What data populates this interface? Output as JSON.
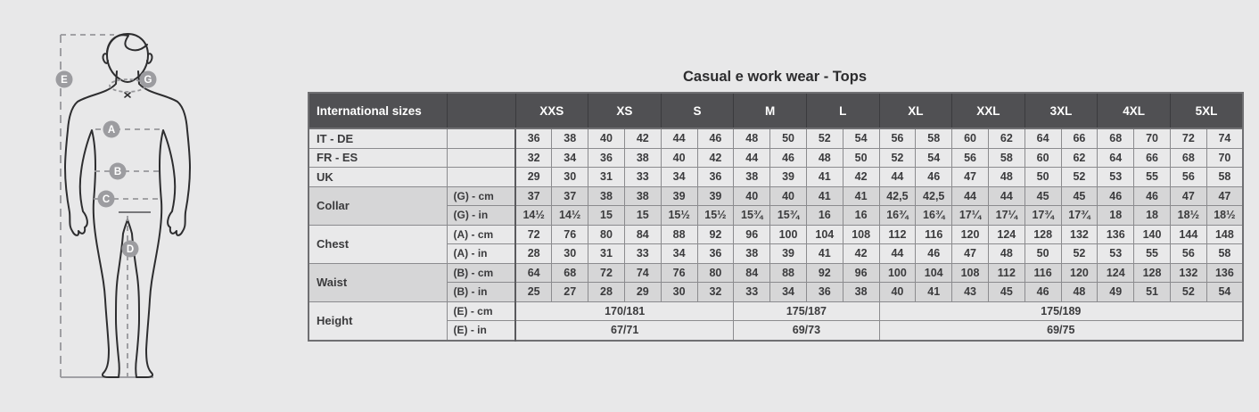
{
  "title": "Casual e work wear - Tops",
  "colors": {
    "page_background": "#e8e8e9",
    "header_background": "#505053",
    "header_text": "#ffffff",
    "row_light": "#e9e9ea",
    "row_dark": "#d6d6d7",
    "badge": "#9c9ca0",
    "body_outline": "#2d2d2f",
    "measure_line": "#97979b"
  },
  "figure": {
    "markers": {
      "height": "E",
      "collar": "G",
      "chest": "A",
      "waist": "B",
      "hip": "C",
      "inseam": "D"
    }
  },
  "table": {
    "corner_label": "International sizes",
    "size_groups": [
      "XXS",
      "XS",
      "S",
      "M",
      "L",
      "XL",
      "XXL",
      "3XL",
      "4XL",
      "5XL"
    ],
    "rows": [
      {
        "label": "IT - DE",
        "rowspan": 1,
        "sub": "",
        "shade": "light",
        "cells": [
          "36",
          "38",
          "40",
          "42",
          "44",
          "46",
          "48",
          "50",
          "52",
          "54",
          "56",
          "58",
          "60",
          "62",
          "64",
          "66",
          "68",
          "70",
          "72",
          "74"
        ]
      },
      {
        "label": "FR - ES",
        "rowspan": 1,
        "sub": "",
        "shade": "light",
        "cells": [
          "32",
          "34",
          "36",
          "38",
          "40",
          "42",
          "44",
          "46",
          "48",
          "50",
          "52",
          "54",
          "56",
          "58",
          "60",
          "62",
          "64",
          "66",
          "68",
          "70"
        ]
      },
      {
        "label": "UK",
        "rowspan": 1,
        "sub": "",
        "shade": "light",
        "cells": [
          "29",
          "30",
          "31",
          "33",
          "34",
          "36",
          "38",
          "39",
          "41",
          "42",
          "44",
          "46",
          "47",
          "48",
          "50",
          "52",
          "53",
          "55",
          "56",
          "58"
        ]
      },
      {
        "label": "Collar",
        "rowspan": 2,
        "sub": "(G) - cm",
        "shade": "dark",
        "cells": [
          "37",
          "37",
          "38",
          "38",
          "39",
          "39",
          "40",
          "40",
          "41",
          "41",
          "42,5",
          "42,5",
          "44",
          "44",
          "45",
          "45",
          "46",
          "46",
          "47",
          "47"
        ]
      },
      {
        "label": null,
        "sub": "(G) - in",
        "shade": "dark",
        "cells": [
          "14½",
          "14½",
          "15",
          "15",
          "15½",
          "15½",
          "15¾",
          "15¾",
          "16",
          "16",
          "16¾",
          "16¾",
          "17¼",
          "17¼",
          "17¾",
          "17¾",
          "18",
          "18",
          "18½",
          "18½"
        ]
      },
      {
        "label": "Chest",
        "rowspan": 2,
        "sub": "(A) - cm",
        "shade": "light",
        "cells": [
          "72",
          "76",
          "80",
          "84",
          "88",
          "92",
          "96",
          "100",
          "104",
          "108",
          "112",
          "116",
          "120",
          "124",
          "128",
          "132",
          "136",
          "140",
          "144",
          "148"
        ]
      },
      {
        "label": null,
        "sub": "(A) - in",
        "shade": "light",
        "cells": [
          "28",
          "30",
          "31",
          "33",
          "34",
          "36",
          "38",
          "39",
          "41",
          "42",
          "44",
          "46",
          "47",
          "48",
          "50",
          "52",
          "53",
          "55",
          "56",
          "58"
        ]
      },
      {
        "label": "Waist",
        "rowspan": 2,
        "sub": "(B) - cm",
        "shade": "dark",
        "cells": [
          "64",
          "68",
          "72",
          "74",
          "76",
          "80",
          "84",
          "88",
          "92",
          "96",
          "100",
          "104",
          "108",
          "112",
          "116",
          "120",
          "124",
          "128",
          "132",
          "136"
        ]
      },
      {
        "label": null,
        "sub": "(B) - in",
        "shade": "dark",
        "cells": [
          "25",
          "27",
          "28",
          "29",
          "30",
          "32",
          "33",
          "34",
          "36",
          "38",
          "40",
          "41",
          "43",
          "45",
          "46",
          "48",
          "49",
          "51",
          "52",
          "54"
        ]
      },
      {
        "label": "Height",
        "rowspan": 2,
        "sub": "(E) - cm",
        "shade": "light",
        "cells": [
          {
            "t": "170/181",
            "span": 6
          },
          {
            "t": "175/187",
            "span": 4
          },
          {
            "t": "175/189",
            "span": 10
          }
        ]
      },
      {
        "label": null,
        "sub": "(E) - in",
        "shade": "light",
        "cells": [
          {
            "t": "67/71",
            "span": 6
          },
          {
            "t": "69/73",
            "span": 4
          },
          {
            "t": "69/75",
            "span": 10
          }
        ]
      }
    ]
  }
}
